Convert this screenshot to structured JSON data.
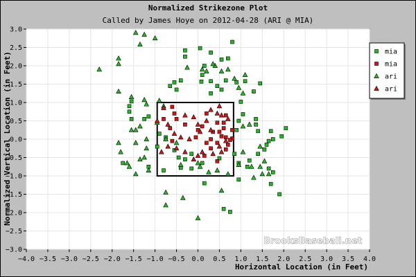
{
  "chart_data": {
    "type": "scatter",
    "title": "Normalized Strikezone Plot",
    "subtitle": "Called by James Hoye on 2012-04-28 (ARI @ MIA)",
    "xlabel": "Horizontal Location (in Feet)",
    "ylabel": "Normalized Vertical Location (in Feet)",
    "xlim": [
      -4.0,
      4.0
    ],
    "ylim": [
      -3.0,
      3.0
    ],
    "x_ticks": [
      -4.0,
      -3.5,
      -3.0,
      -2.5,
      -2.0,
      -1.5,
      -1.0,
      -0.5,
      0.0,
      0.5,
      1.0,
      1.5,
      2.0,
      2.5,
      3.0,
      3.5,
      4.0
    ],
    "y_ticks": [
      -3.0,
      -2.5,
      -2.0,
      -1.5,
      -1.0,
      -0.5,
      0.0,
      0.5,
      1.0,
      1.5,
      2.0,
      2.5,
      3.0
    ],
    "grid": true,
    "legend_position": "top-right",
    "watermark": "BrooksBaseball.net",
    "strike_zone": {
      "x": [
        -0.95,
        0.83
      ],
      "y": [
        -1.0,
        1.0
      ]
    },
    "series": [
      {
        "name": "mia",
        "marker": "square",
        "color": "#22bb22",
        "points": [
          [
            -0.3,
            2.42
          ],
          [
            -0.3,
            2.25
          ],
          [
            0.05,
            2.48
          ],
          [
            0.3,
            2.36
          ],
          [
            0.55,
            2.17
          ],
          [
            0.7,
            2.2
          ],
          [
            0.8,
            2.65
          ],
          [
            0.15,
            2.0
          ],
          [
            0.1,
            1.75
          ],
          [
            -0.55,
            1.55
          ],
          [
            -0.4,
            1.6
          ],
          [
            -0.65,
            1.45
          ],
          [
            -0.5,
            1.35
          ],
          [
            0.08,
            1.57
          ],
          [
            0.3,
            1.58
          ],
          [
            0.45,
            1.45
          ],
          [
            0.65,
            1.6
          ],
          [
            0.9,
            1.55
          ],
          [
            1.1,
            1.58
          ],
          [
            1.45,
            1.52
          ],
          [
            1.3,
            1.3
          ],
          [
            0.3,
            1.25
          ],
          [
            0.55,
            1.35
          ],
          [
            1.0,
            1.02
          ],
          [
            0.95,
            0.5
          ],
          [
            1.05,
            0.68
          ],
          [
            1.35,
            0.55
          ],
          [
            1.35,
            0.4
          ],
          [
            1.4,
            0.22
          ],
          [
            1.7,
            0.22
          ],
          [
            1.75,
            0.0
          ],
          [
            1.65,
            -0.05
          ],
          [
            1.6,
            -0.15
          ],
          [
            2.05,
            0.3
          ],
          [
            1.95,
            0.08
          ],
          [
            1.55,
            -0.28
          ],
          [
            1.4,
            -0.4
          ],
          [
            1.2,
            -0.58
          ],
          [
            1.15,
            -0.75
          ],
          [
            0.95,
            -0.65
          ],
          [
            0.85,
            -0.4
          ],
          [
            0.95,
            -1.1
          ],
          [
            1.65,
            -0.8
          ],
          [
            1.75,
            -0.9
          ],
          [
            1.7,
            -1.22
          ],
          [
            1.9,
            -1.5
          ],
          [
            -1.55,
            1.03
          ],
          [
            -1.6,
            0.9
          ],
          [
            -1.6,
            0.75
          ],
          [
            -1.55,
            0.55
          ],
          [
            -1.25,
            0.55
          ],
          [
            -1.15,
            0.62
          ],
          [
            -0.9,
            0.15
          ],
          [
            -0.75,
            0.05
          ],
          [
            -0.95,
            -0.2
          ],
          [
            -0.55,
            -0.3
          ],
          [
            -0.45,
            -0.5
          ],
          [
            -0.3,
            -0.55
          ],
          [
            -0.15,
            -0.4
          ],
          [
            0.5,
            -0.52
          ],
          [
            0.1,
            -0.65
          ],
          [
            -0.15,
            -0.8
          ],
          [
            -1.15,
            -0.75
          ],
          [
            -1.75,
            -0.65
          ],
          [
            -0.4,
            -0.78
          ],
          [
            -0.8,
            -0.85
          ],
          [
            0.15,
            -1.2
          ],
          [
            0.6,
            -1.9
          ],
          [
            0.75,
            -1.98
          ],
          [
            0.9,
            0.25
          ]
        ]
      },
      {
        "name": "mia",
        "marker": "square",
        "color": "#dd1111",
        "points": [
          [
            -0.6,
            0.88
          ],
          [
            -0.55,
            0.7
          ],
          [
            -0.5,
            0.55
          ],
          [
            -0.3,
            0.4
          ],
          [
            -0.65,
            0.3
          ],
          [
            -0.8,
            0.55
          ],
          [
            0.2,
            0.7
          ],
          [
            0.65,
            0.65
          ],
          [
            0.45,
            0.45
          ],
          [
            0.6,
            0.45
          ],
          [
            0.35,
            0.2
          ],
          [
            0.5,
            0.2
          ],
          [
            0.55,
            0.08
          ],
          [
            0.65,
            0.05
          ],
          [
            0.8,
            0.25
          ],
          [
            0.3,
            0.0
          ],
          [
            0.2,
            -0.1
          ],
          [
            0.45,
            -0.1
          ],
          [
            0.1,
            0.35
          ],
          [
            0.0,
            0.25
          ],
          [
            -0.05,
            0.05
          ],
          [
            -0.6,
            -0.05
          ],
          [
            0.7,
            -0.15
          ],
          [
            0.65,
            -0.28
          ],
          [
            0.8,
            0.02
          ],
          [
            0.75,
            -0.02
          ],
          [
            0.15,
            -0.45
          ],
          [
            0.45,
            -0.6
          ],
          [
            0.3,
            -0.25
          ],
          [
            0.6,
            0.3
          ]
        ]
      },
      {
        "name": "ari",
        "marker": "triangle",
        "color": "#22bb22",
        "points": [
          [
            -1.45,
            2.9
          ],
          [
            -1.25,
            2.85
          ],
          [
            -1.0,
            2.75
          ],
          [
            -1.35,
            2.58
          ],
          [
            -1.85,
            2.2
          ],
          [
            -1.85,
            2.05
          ],
          [
            -2.3,
            1.9
          ],
          [
            -0.25,
            1.95
          ],
          [
            0.1,
            1.9
          ],
          [
            0.2,
            1.85
          ],
          [
            0.4,
            2.0
          ],
          [
            0.35,
            2.05
          ],
          [
            0.55,
            1.85
          ],
          [
            0.7,
            1.9
          ],
          [
            0.85,
            1.65
          ],
          [
            1.1,
            1.75
          ],
          [
            0.95,
            1.4
          ],
          [
            1.05,
            1.25
          ],
          [
            -1.85,
            1.3
          ],
          [
            -1.55,
            1.15
          ],
          [
            -1.25,
            1.07
          ],
          [
            -1.2,
            0.95
          ],
          [
            -0.9,
            1.05
          ],
          [
            -0.8,
            0.9
          ],
          [
            -1.35,
            0.35
          ],
          [
            -1.55,
            0.25
          ],
          [
            -1.45,
            0.25
          ],
          [
            -0.95,
            0.45
          ],
          [
            -1.2,
            0.0
          ],
          [
            -1.45,
            -0.1
          ],
          [
            -1.85,
            -0.1
          ],
          [
            -1.2,
            -0.25
          ],
          [
            -1.25,
            -0.5
          ],
          [
            -1.35,
            -0.55
          ],
          [
            -1.8,
            -0.35
          ],
          [
            -1.65,
            -0.65
          ],
          [
            -1.6,
            -0.75
          ],
          [
            -1.45,
            -0.95
          ],
          [
            -1.15,
            -0.85
          ],
          [
            -0.75,
            0.0
          ],
          [
            -0.5,
            -0.1
          ],
          [
            -0.4,
            -0.7
          ],
          [
            0.0,
            -0.65
          ],
          [
            0.05,
            -0.75
          ],
          [
            0.25,
            -0.9
          ],
          [
            1.05,
            -0.35
          ],
          [
            1.2,
            0.4
          ],
          [
            1.05,
            0.35
          ],
          [
            0.95,
            -0.7
          ],
          [
            1.45,
            -0.75
          ],
          [
            1.25,
            -0.75
          ],
          [
            1.5,
            -0.95
          ],
          [
            0.45,
            -0.85
          ],
          [
            0.7,
            -0.95
          ],
          [
            1.3,
            -1.05
          ],
          [
            1.65,
            -0.95
          ],
          [
            -0.75,
            -1.45
          ],
          [
            -0.75,
            -1.8
          ],
          [
            -0.35,
            -1.6
          ],
          [
            0.55,
            -1.4
          ],
          [
            0.0,
            -2.15
          ],
          [
            1.55,
            -0.6
          ],
          [
            1.45,
            -0.2
          ]
        ]
      },
      {
        "name": "ari",
        "marker": "triangle",
        "color": "#dd1111",
        "points": [
          [
            -0.8,
            0.85
          ],
          [
            -0.95,
            0.5
          ],
          [
            -0.7,
            0.4
          ],
          [
            -0.3,
            0.65
          ],
          [
            -0.1,
            0.6
          ],
          [
            0.0,
            0.4
          ],
          [
            0.05,
            0.2
          ],
          [
            0.3,
            0.8
          ],
          [
            0.5,
            0.9
          ],
          [
            0.45,
            0.7
          ],
          [
            -0.55,
            0.15
          ],
          [
            -0.4,
            0.05
          ],
          [
            -0.5,
            -0.25
          ],
          [
            -0.7,
            -0.2
          ],
          [
            -0.85,
            -0.35
          ],
          [
            -0.3,
            -0.35
          ],
          [
            -0.1,
            -0.55
          ],
          [
            0.0,
            -0.45
          ],
          [
            0.1,
            -0.35
          ],
          [
            0.35,
            -0.4
          ],
          [
            0.55,
            -0.35
          ],
          [
            0.3,
            0.25
          ],
          [
            0.65,
            -0.05
          ],
          [
            0.55,
            0.65
          ],
          [
            0.7,
            0.55
          ],
          [
            0.2,
            0.5
          ],
          [
            -0.2,
            0.0
          ],
          [
            0.5,
            -0.2
          ]
        ]
      }
    ]
  },
  "legend": [
    {
      "label": "mia",
      "marker": "square",
      "color": "#22bb22"
    },
    {
      "label": "mia",
      "marker": "square",
      "color": "#dd1111"
    },
    {
      "label": "ari",
      "marker": "triangle",
      "color": "#22bb22"
    },
    {
      "label": "ari",
      "marker": "triangle",
      "color": "#dd1111"
    }
  ]
}
